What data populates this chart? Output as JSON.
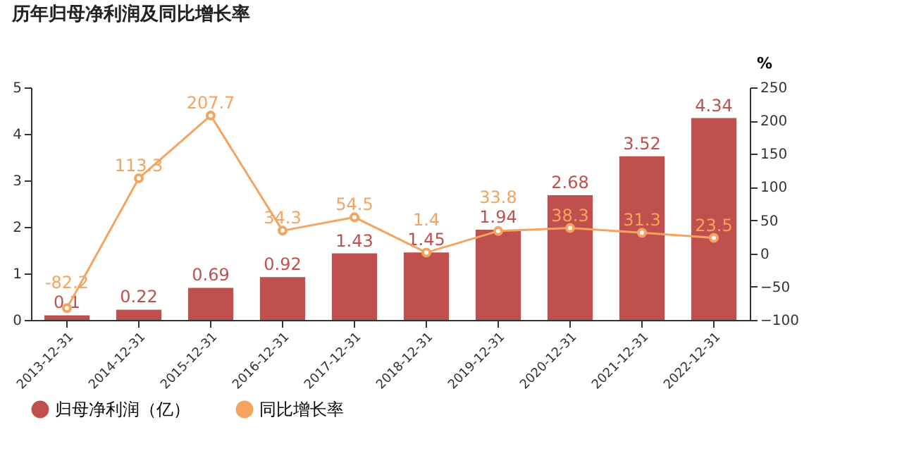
{
  "chart_data": {
    "type": "bar",
    "title": "历年归母净利润及同比增长率",
    "y2label": "%",
    "categories": [
      "2013-12-31",
      "2014-12-31",
      "2015-12-31",
      "2016-12-31",
      "2017-12-31",
      "2018-12-31",
      "2019-12-31",
      "2020-12-31",
      "2021-12-31",
      "2022-12-31"
    ],
    "series": [
      {
        "name": "归母净利润（亿）",
        "color": "#c0504d",
        "values": [
          0.1,
          0.22,
          0.69,
          0.92,
          1.43,
          1.45,
          1.94,
          2.68,
          3.52,
          4.34
        ]
      },
      {
        "name": "同比增长率",
        "type": "line",
        "axis": "y2",
        "color": "#f4a460",
        "values": [
          -82.2,
          113.3,
          207.7,
          34.3,
          54.5,
          1.4,
          33.8,
          38.3,
          31.3,
          23.5
        ]
      }
    ],
    "ylim": [
      0,
      5
    ],
    "yticks": [
      0,
      1,
      2,
      3,
      4,
      5
    ],
    "y2lim": [
      -100,
      250
    ],
    "y2ticks": [
      -100,
      -50,
      0,
      50,
      100,
      150,
      200,
      250
    ],
    "data_labels": true,
    "grid": false,
    "legend": "bottom",
    "marker": "circle"
  }
}
